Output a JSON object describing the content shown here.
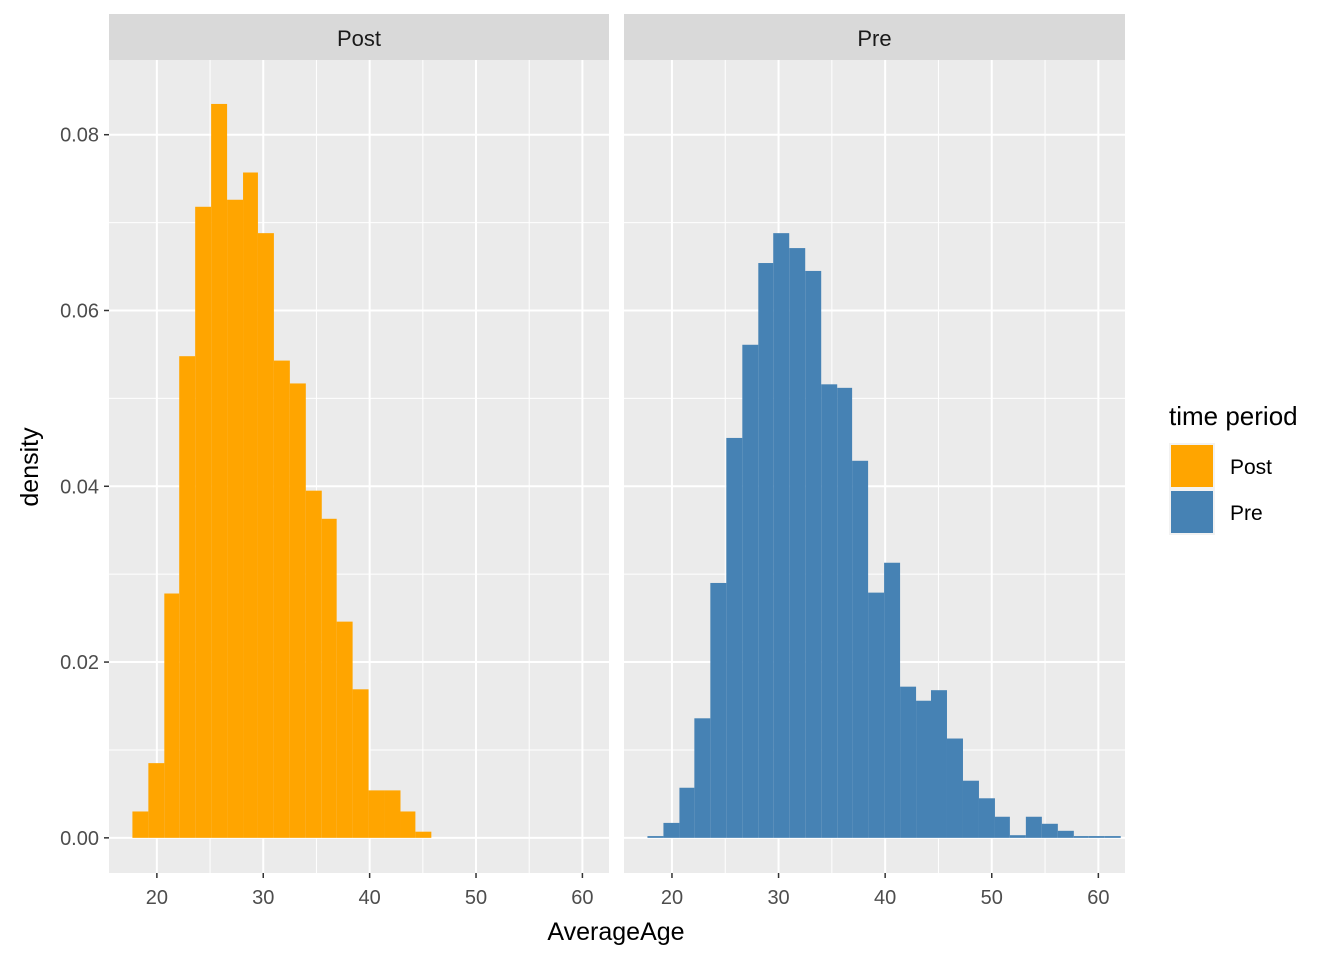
{
  "chart_data": {
    "type": "bar",
    "subtype": "faceted-histogram",
    "xlabel": "AverageAge",
    "ylabel": "density",
    "xlim": [
      15.5,
      62.5
    ],
    "ylim": [
      -0.004,
      0.0885
    ],
    "x_ticks": [
      "20",
      "30",
      "40",
      "50",
      "60"
    ],
    "x_tick_values": [
      20,
      30,
      40,
      50,
      60
    ],
    "y_ticks": [
      "0.00",
      "0.02",
      "0.04",
      "0.06",
      "0.08"
    ],
    "y_tick_values": [
      0,
      0.02,
      0.04,
      0.06,
      0.08
    ],
    "grid": true,
    "legend": {
      "title": "time period",
      "position": "right",
      "entries": [
        {
          "label": "Post",
          "color": "#FFA500"
        },
        {
          "label": "Pre",
          "color": "#4682B4"
        }
      ]
    },
    "panels": [
      {
        "strip": "Post",
        "color": "#FFA500",
        "bins": [
          {
            "x0": 17.7,
            "x1": 19.2,
            "y": 0.003
          },
          {
            "x0": 19.2,
            "x1": 20.7,
            "y": 0.0085
          },
          {
            "x0": 20.7,
            "x1": 22.1,
            "y": 0.0278
          },
          {
            "x0": 22.1,
            "x1": 23.6,
            "y": 0.0548
          },
          {
            "x0": 23.6,
            "x1": 25.1,
            "y": 0.0718
          },
          {
            "x0": 25.1,
            "x1": 26.6,
            "y": 0.0835
          },
          {
            "x0": 26.6,
            "x1": 28.1,
            "y": 0.0726
          },
          {
            "x0": 28.1,
            "x1": 29.5,
            "y": 0.0757
          },
          {
            "x0": 29.5,
            "x1": 31.0,
            "y": 0.0688
          },
          {
            "x0": 31.0,
            "x1": 32.5,
            "y": 0.0543
          },
          {
            "x0": 32.5,
            "x1": 34.0,
            "y": 0.0517
          },
          {
            "x0": 34.0,
            "x1": 35.5,
            "y": 0.0395
          },
          {
            "x0": 35.5,
            "x1": 36.9,
            "y": 0.0363
          },
          {
            "x0": 36.9,
            "x1": 38.4,
            "y": 0.0246
          },
          {
            "x0": 38.4,
            "x1": 39.9,
            "y": 0.0169
          },
          {
            "x0": 39.9,
            "x1": 41.4,
            "y": 0.0054
          },
          {
            "x0": 41.4,
            "x1": 42.9,
            "y": 0.0054
          },
          {
            "x0": 42.9,
            "x1": 44.3,
            "y": 0.003
          },
          {
            "x0": 44.3,
            "x1": 45.8,
            "y": 0.0007
          }
        ]
      },
      {
        "strip": "Pre",
        "color": "#4682B4",
        "bins": [
          {
            "x0": 17.7,
            "x1": 19.2,
            "y": 0.0002
          },
          {
            "x0": 19.2,
            "x1": 20.7,
            "y": 0.0017
          },
          {
            "x0": 20.7,
            "x1": 22.1,
            "y": 0.0057
          },
          {
            "x0": 22.1,
            "x1": 23.6,
            "y": 0.0136
          },
          {
            "x0": 23.6,
            "x1": 25.1,
            "y": 0.029
          },
          {
            "x0": 25.1,
            "x1": 26.6,
            "y": 0.0455
          },
          {
            "x0": 26.6,
            "x1": 28.1,
            "y": 0.0561
          },
          {
            "x0": 28.1,
            "x1": 29.5,
            "y": 0.0654
          },
          {
            "x0": 29.5,
            "x1": 31.0,
            "y": 0.0688
          },
          {
            "x0": 31.0,
            "x1": 32.5,
            "y": 0.0671
          },
          {
            "x0": 32.5,
            "x1": 34.0,
            "y": 0.0645
          },
          {
            "x0": 34.0,
            "x1": 35.5,
            "y": 0.0516
          },
          {
            "x0": 35.5,
            "x1": 36.9,
            "y": 0.0512
          },
          {
            "x0": 36.9,
            "x1": 38.4,
            "y": 0.0429
          },
          {
            "x0": 38.4,
            "x1": 39.9,
            "y": 0.0279
          },
          {
            "x0": 39.9,
            "x1": 41.4,
            "y": 0.0313
          },
          {
            "x0": 41.4,
            "x1": 42.9,
            "y": 0.0172
          },
          {
            "x0": 42.9,
            "x1": 44.3,
            "y": 0.0156
          },
          {
            "x0": 44.3,
            "x1": 45.8,
            "y": 0.0168
          },
          {
            "x0": 45.8,
            "x1": 47.3,
            "y": 0.0113
          },
          {
            "x0": 47.3,
            "x1": 48.8,
            "y": 0.0065
          },
          {
            "x0": 48.8,
            "x1": 50.3,
            "y": 0.0045
          },
          {
            "x0": 50.3,
            "x1": 51.7,
            "y": 0.0024
          },
          {
            "x0": 51.7,
            "x1": 53.2,
            "y": 0.0003
          },
          {
            "x0": 53.2,
            "x1": 54.7,
            "y": 0.0024
          },
          {
            "x0": 54.7,
            "x1": 56.2,
            "y": 0.0016
          },
          {
            "x0": 56.2,
            "x1": 57.7,
            "y": 0.0008
          },
          {
            "x0": 57.7,
            "x1": 59.1,
            "y": 0.0002
          },
          {
            "x0": 59.1,
            "x1": 60.6,
            "y": 0.0002
          },
          {
            "x0": 60.6,
            "x1": 62.1,
            "y": 0.0002
          }
        ]
      }
    ]
  }
}
